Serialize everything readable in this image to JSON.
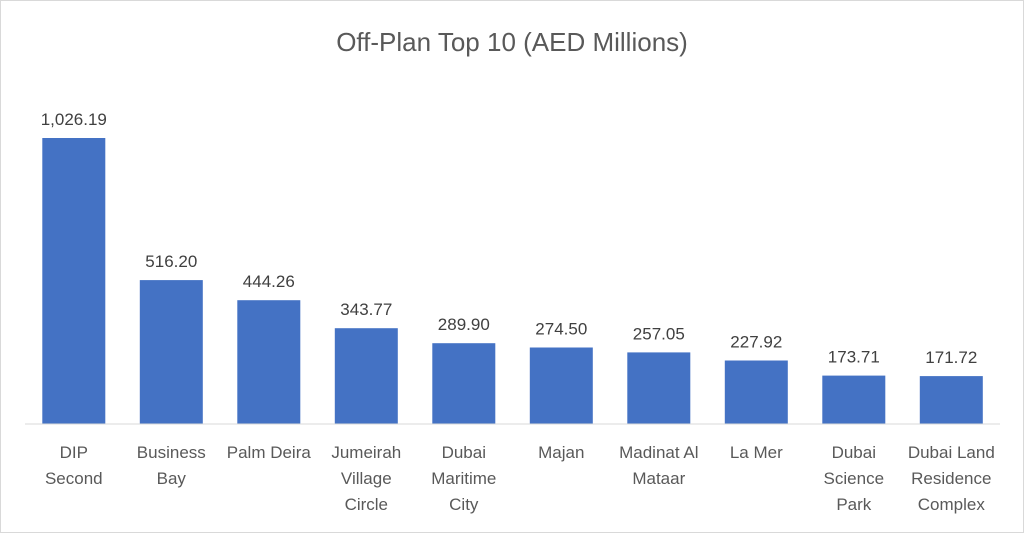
{
  "chart_data": {
    "type": "bar",
    "title": "Off-Plan Top 10 (AED Millions)",
    "categories": [
      [
        "DIP",
        "Second"
      ],
      [
        "Business",
        "Bay"
      ],
      [
        "Palm Deira"
      ],
      [
        "Jumeirah",
        "Village",
        "Circle"
      ],
      [
        "Dubai",
        "Maritime",
        "City"
      ],
      [
        "Majan"
      ],
      [
        "Madinat Al",
        "Mataar"
      ],
      [
        "La Mer"
      ],
      [
        "Dubai",
        "Science",
        "Park"
      ],
      [
        "Dubai Land",
        "Residence",
        "Complex"
      ]
    ],
    "values": [
      1026.19,
      516.2,
      444.26,
      343.77,
      289.9,
      274.5,
      257.05,
      227.92,
      173.71,
      171.72
    ],
    "data_labels": [
      "1,026.19",
      "516.20",
      "444.26",
      "343.77",
      "289.90",
      "274.50",
      "257.05",
      "227.92",
      "173.71",
      "171.72"
    ],
    "ylim": [
      0,
      1026.19
    ],
    "grid": false,
    "legend": "none",
    "bar_color": "#4472c4",
    "axis_color": "#d9d9d9"
  }
}
